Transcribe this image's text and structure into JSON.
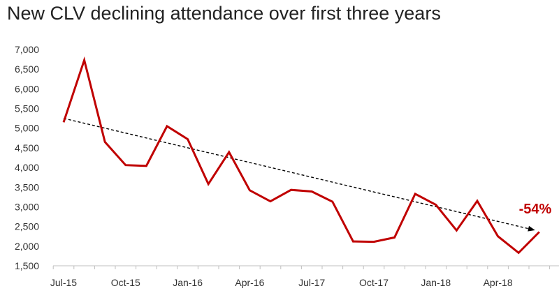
{
  "chart_data": {
    "type": "line",
    "title": "New CLV declining attendance over first three years",
    "xlabel": "",
    "ylabel": "",
    "ylim": [
      1500,
      7000
    ],
    "yticks": [
      1500,
      2000,
      2500,
      3000,
      3500,
      4000,
      4500,
      5000,
      5500,
      6000,
      6500,
      7000
    ],
    "ytick_labels": [
      "1,500",
      "2,000",
      "2,500",
      "3,000",
      "3,500",
      "4,000",
      "4,500",
      "5,000",
      "5,500",
      "6,000",
      "6,500",
      "7,000"
    ],
    "x": [
      "Jul-15",
      "Aug-15",
      "Sep-15",
      "Oct-15",
      "Nov-15",
      "Dec-15",
      "Jan-16",
      "Feb-16",
      "Mar-16",
      "Apr-16",
      "May-16",
      "Jun-16",
      "Jul-17",
      "Aug-17",
      "Sep-17",
      "Oct-17",
      "Nov-17",
      "Dec-17",
      "Jan-18",
      "Feb-18",
      "Mar-18",
      "Apr-18",
      "May-18",
      "Jun-18"
    ],
    "xtick_labels": [
      "Jul-15",
      "Oct-15",
      "Jan-16",
      "Apr-16",
      "Jul-17",
      "Oct-17",
      "Jan-18",
      "Apr-18"
    ],
    "xtick_every": 3,
    "series": [
      {
        "color": "#c00000",
        "values": [
          5150,
          6730,
          4650,
          4060,
          4040,
          5050,
          4720,
          3580,
          4390,
          3420,
          3140,
          3430,
          3390,
          3130,
          2120,
          2110,
          2220,
          3330,
          3050,
          2400,
          3150,
          2250,
          1830,
          2360
        ]
      }
    ],
    "trendline": {
      "start": 5250,
      "end": 2360,
      "style": "dashed",
      "color": "#000000"
    },
    "annotation": {
      "text": "-54%",
      "color": "#c00000"
    },
    "grid": false,
    "legend": "none"
  }
}
